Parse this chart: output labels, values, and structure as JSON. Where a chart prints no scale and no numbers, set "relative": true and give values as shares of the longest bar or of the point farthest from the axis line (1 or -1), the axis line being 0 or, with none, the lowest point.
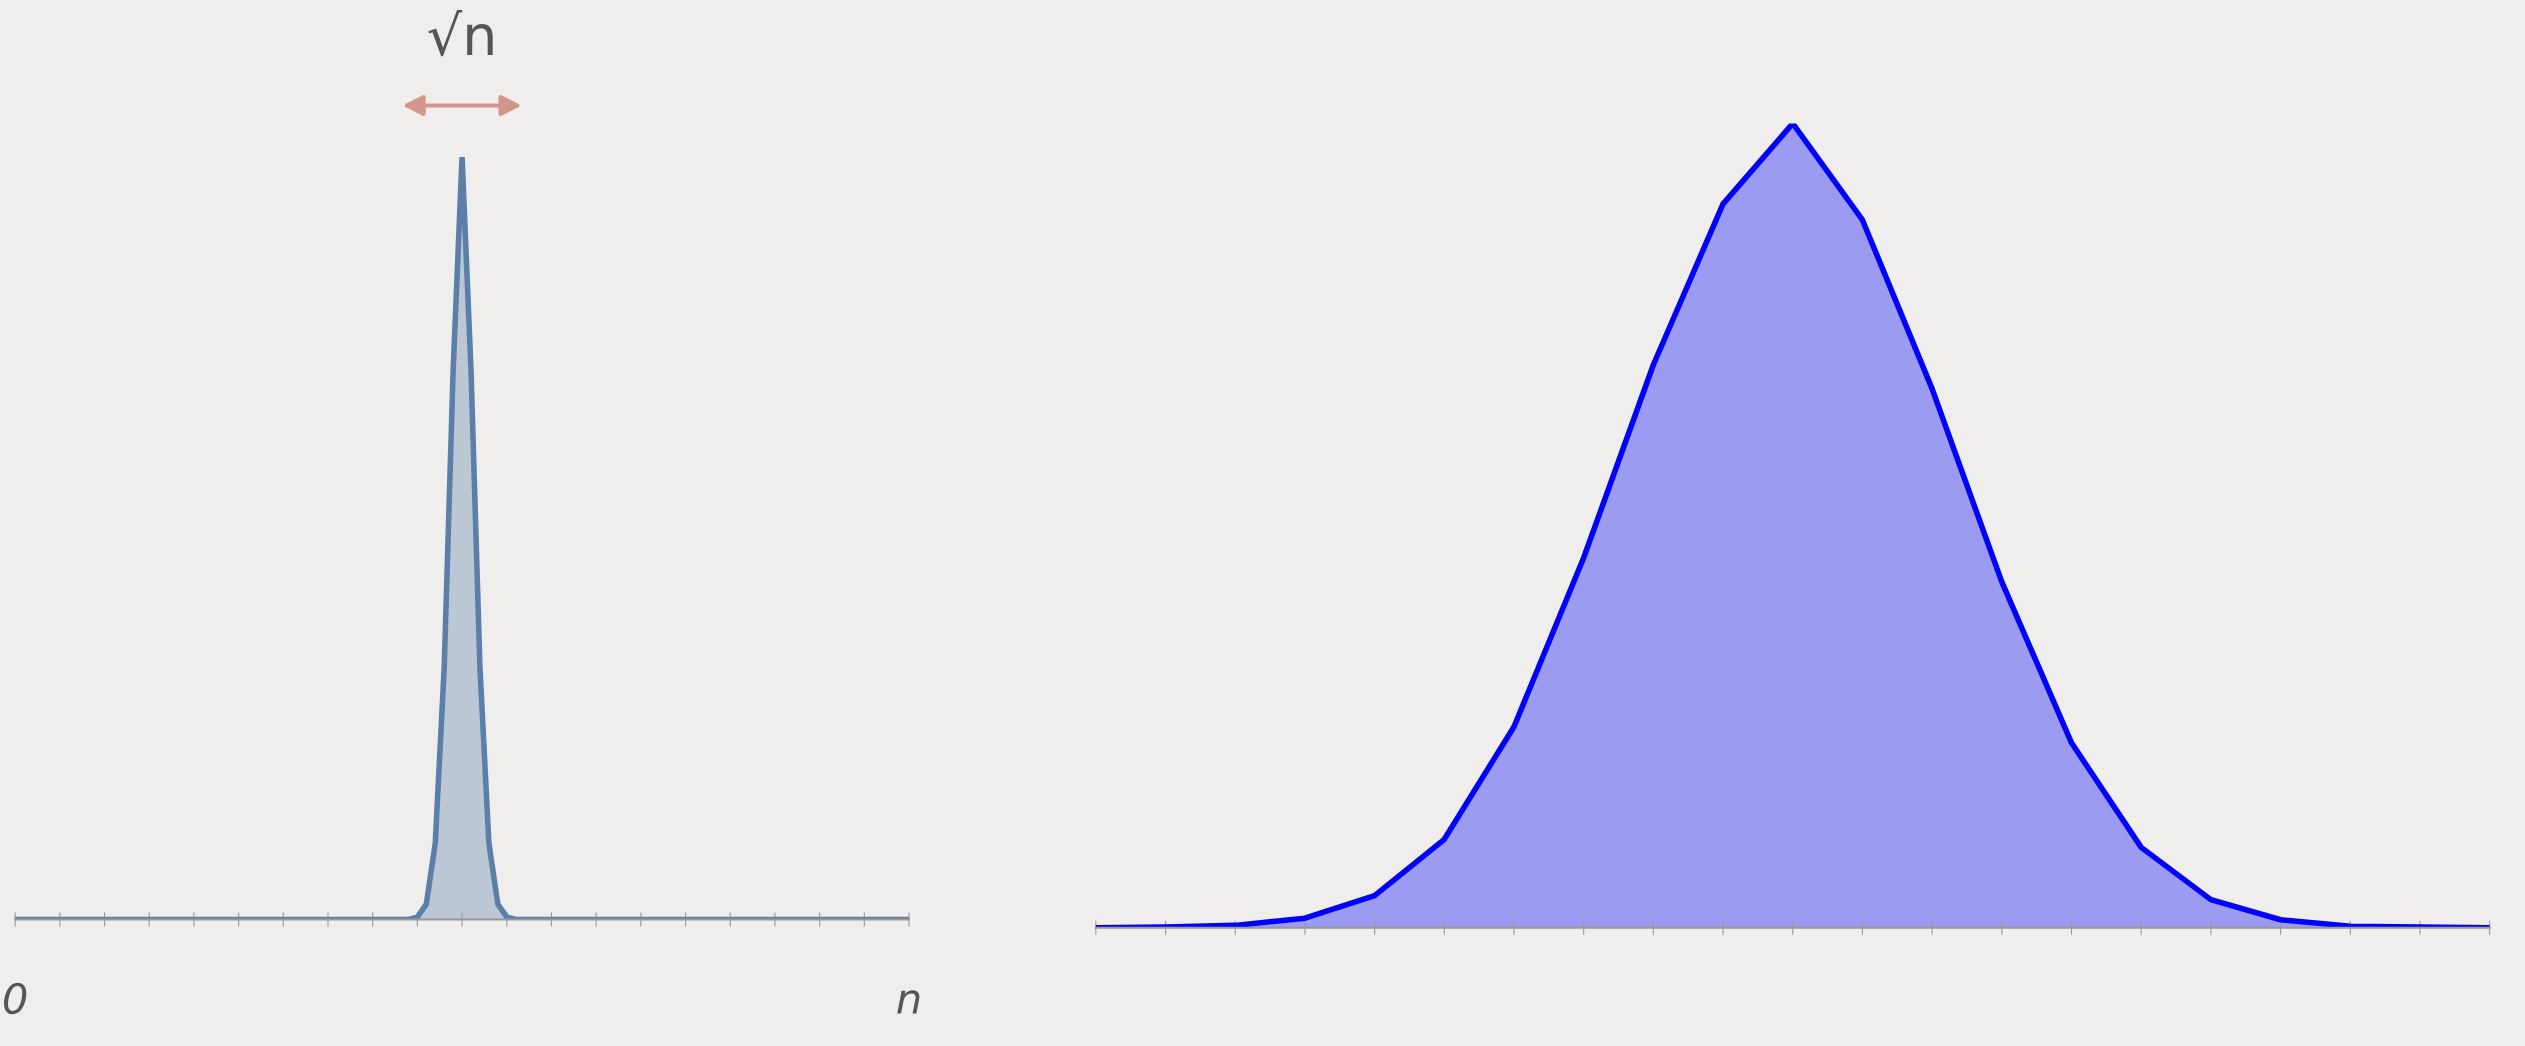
{
  "chart_data": [
    {
      "type": "area",
      "relative": true,
      "categories": [
        "0",
        null,
        null,
        null,
        null,
        null,
        null,
        null,
        null,
        null,
        null,
        null,
        null,
        null,
        null,
        null,
        null,
        null,
        null,
        null,
        null,
        null,
        null,
        null,
        null,
        null,
        null,
        null,
        null,
        null,
        null,
        null,
        null,
        null,
        null,
        null,
        null,
        null,
        null,
        null,
        null,
        null,
        null,
        null,
        null,
        null,
        null,
        null,
        null,
        null,
        null,
        null,
        null,
        null,
        null,
        null,
        null,
        null,
        null,
        null,
        null,
        null,
        null,
        null,
        null,
        null,
        null,
        null,
        null,
        null,
        null,
        null,
        null,
        null,
        null,
        null,
        null,
        null,
        null,
        null,
        null,
        null,
        null,
        null,
        null,
        null,
        null,
        null,
        null,
        null,
        null,
        null,
        null,
        null,
        null,
        null,
        null,
        null,
        null,
        null,
        "n"
      ],
      "series": [
        {
          "color": "#5b7fa8",
          "values": [
            0,
            0,
            0,
            0,
            0,
            0,
            0,
            0,
            0,
            0,
            0,
            0,
            0,
            0,
            0,
            0,
            0,
            0,
            0,
            0,
            0,
            0,
            0,
            0,
            0,
            0,
            0,
            0,
            0,
            0,
            0,
            0,
            0,
            0,
            0,
            0,
            0,
            0,
            0,
            0,
            0,
            0,
            0,
            0,
            0,
            0.003,
            0.02,
            0.1,
            0.33,
            0.72,
            1,
            0.72,
            0.33,
            0.1,
            0.02,
            0.003,
            0,
            0,
            0,
            0,
            0,
            0,
            0,
            0,
            0,
            0,
            0,
            0,
            0,
            0,
            0,
            0,
            0,
            0,
            0,
            0,
            0,
            0,
            0,
            0,
            0,
            0,
            0,
            0,
            0,
            0,
            0,
            0,
            0,
            0,
            0,
            0,
            0,
            0,
            0,
            0,
            0,
            0,
            0,
            0,
            0
          ]
        }
      ],
      "tick_labels": "x",
      "grid": false,
      "legend": false,
      "annotations": [
        {
          "text": "√n",
          "y": 1
        }
      ]
    },
    {
      "type": "area",
      "relative": true,
      "categories": [
        null,
        null,
        null,
        null,
        null,
        null,
        null,
        null,
        null,
        null,
        null,
        null,
        null,
        null,
        null,
        null,
        null,
        null,
        null,
        null,
        null
      ],
      "series": [
        {
          "color": "#0000ff",
          "values": [
            0,
            0.001,
            0.003,
            0.012,
            0.04,
            0.11,
            0.25,
            0.46,
            0.7,
            0.9,
            1,
            0.88,
            0.67,
            0.43,
            0.23,
            0.1,
            0.035,
            0.01,
            0.002,
            0.001,
            0
          ]
        }
      ],
      "tick_labels": false,
      "grid": false,
      "legend": false
    }
  ]
}
